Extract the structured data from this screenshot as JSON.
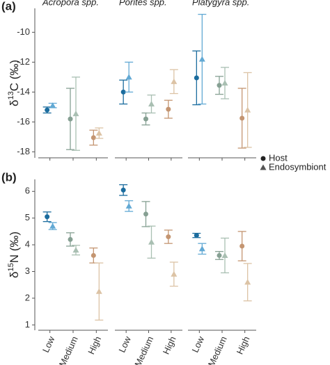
{
  "chart_data": [
    {
      "type": "errorbar",
      "label": "(a)",
      "ylabel": "δ",
      "ylabel_sup": "13",
      "ylabel_rest": "C (‰)",
      "ylim": [
        -18.4,
        -8.4
      ],
      "yticks": [
        -10,
        -12,
        -14,
        -16,
        -18
      ],
      "series": [
        {
          "name": "Host",
          "marker": "circle"
        },
        {
          "name": "Endosymbiont",
          "marker": "triangle"
        }
      ],
      "colors": [
        [
          "#1b6c9e",
          "#62a9d4"
        ],
        [
          "#86a093",
          "#a9bfb2"
        ],
        [
          "#c49571",
          "#dcc3a5"
        ]
      ],
      "facets": [
        {
          "title": "Acropora spp.",
          "values": [
            [
              -15.2,
              -15.8,
              -17.05
            ],
            [
              -14.9,
              -15.45,
              -16.75
            ]
          ],
          "errors": [
            [
              0.2,
              2.05,
              0.5
            ],
            [
              0.15,
              2.45,
              0.35
            ]
          ]
        },
        {
          "title": "Porites spp.",
          "values": [
            [
              -14.0,
              -15.8,
              -15.15
            ],
            [
              -13.0,
              -14.8,
              -13.3
            ]
          ],
          "errors": [
            [
              0.8,
              0.4,
              0.6
            ],
            [
              1.0,
              0.6,
              0.8
            ]
          ]
        },
        {
          "title": "Platygyra spp.",
          "values": [
            [
              -13.05,
              -13.55,
              -15.75
            ],
            [
              -11.8,
              -13.4,
              -15.2
            ]
          ],
          "errors": [
            [
              1.8,
              0.6,
              2.0
            ],
            [
              3.0,
              1.05,
              2.5
            ]
          ]
        }
      ]
    },
    {
      "type": "errorbar",
      "label": "(b)",
      "ylabel": "δ",
      "ylabel_sup": "15",
      "ylabel_rest": "N (‰)",
      "ylim": [
        0.8,
        6.45
      ],
      "yticks": [
        1,
        2,
        3,
        4,
        5,
        6
      ],
      "categories": [
        "Low",
        "Medium",
        "High"
      ],
      "colors": [
        [
          "#1b6c9e",
          "#62a9d4"
        ],
        [
          "#86a093",
          "#a9bfb2"
        ],
        [
          "#c49571",
          "#dcc3a5"
        ]
      ],
      "facets": [
        {
          "values": [
            [
              5.05,
              4.2,
              3.6
            ],
            [
              4.7,
              3.8,
              2.25
            ]
          ],
          "errors": [
            [
              0.18,
              0.25,
              0.28
            ],
            [
              0.13,
              0.18,
              1.07
            ]
          ]
        },
        {
          "values": [
            [
              6.05,
              5.15,
              4.3
            ],
            [
              5.45,
              4.1,
              2.9
            ]
          ],
          "errors": [
            [
              0.2,
              0.47,
              0.25
            ],
            [
              0.2,
              0.6,
              0.45
            ]
          ]
        },
        {
          "values": [
            [
              4.35,
              3.6,
              3.95
            ],
            [
              3.85,
              3.6,
              2.6
            ]
          ],
          "errors": [
            [
              0.08,
              0.15,
              0.55
            ],
            [
              0.2,
              0.65,
              0.7
            ]
          ]
        }
      ]
    }
  ]
}
